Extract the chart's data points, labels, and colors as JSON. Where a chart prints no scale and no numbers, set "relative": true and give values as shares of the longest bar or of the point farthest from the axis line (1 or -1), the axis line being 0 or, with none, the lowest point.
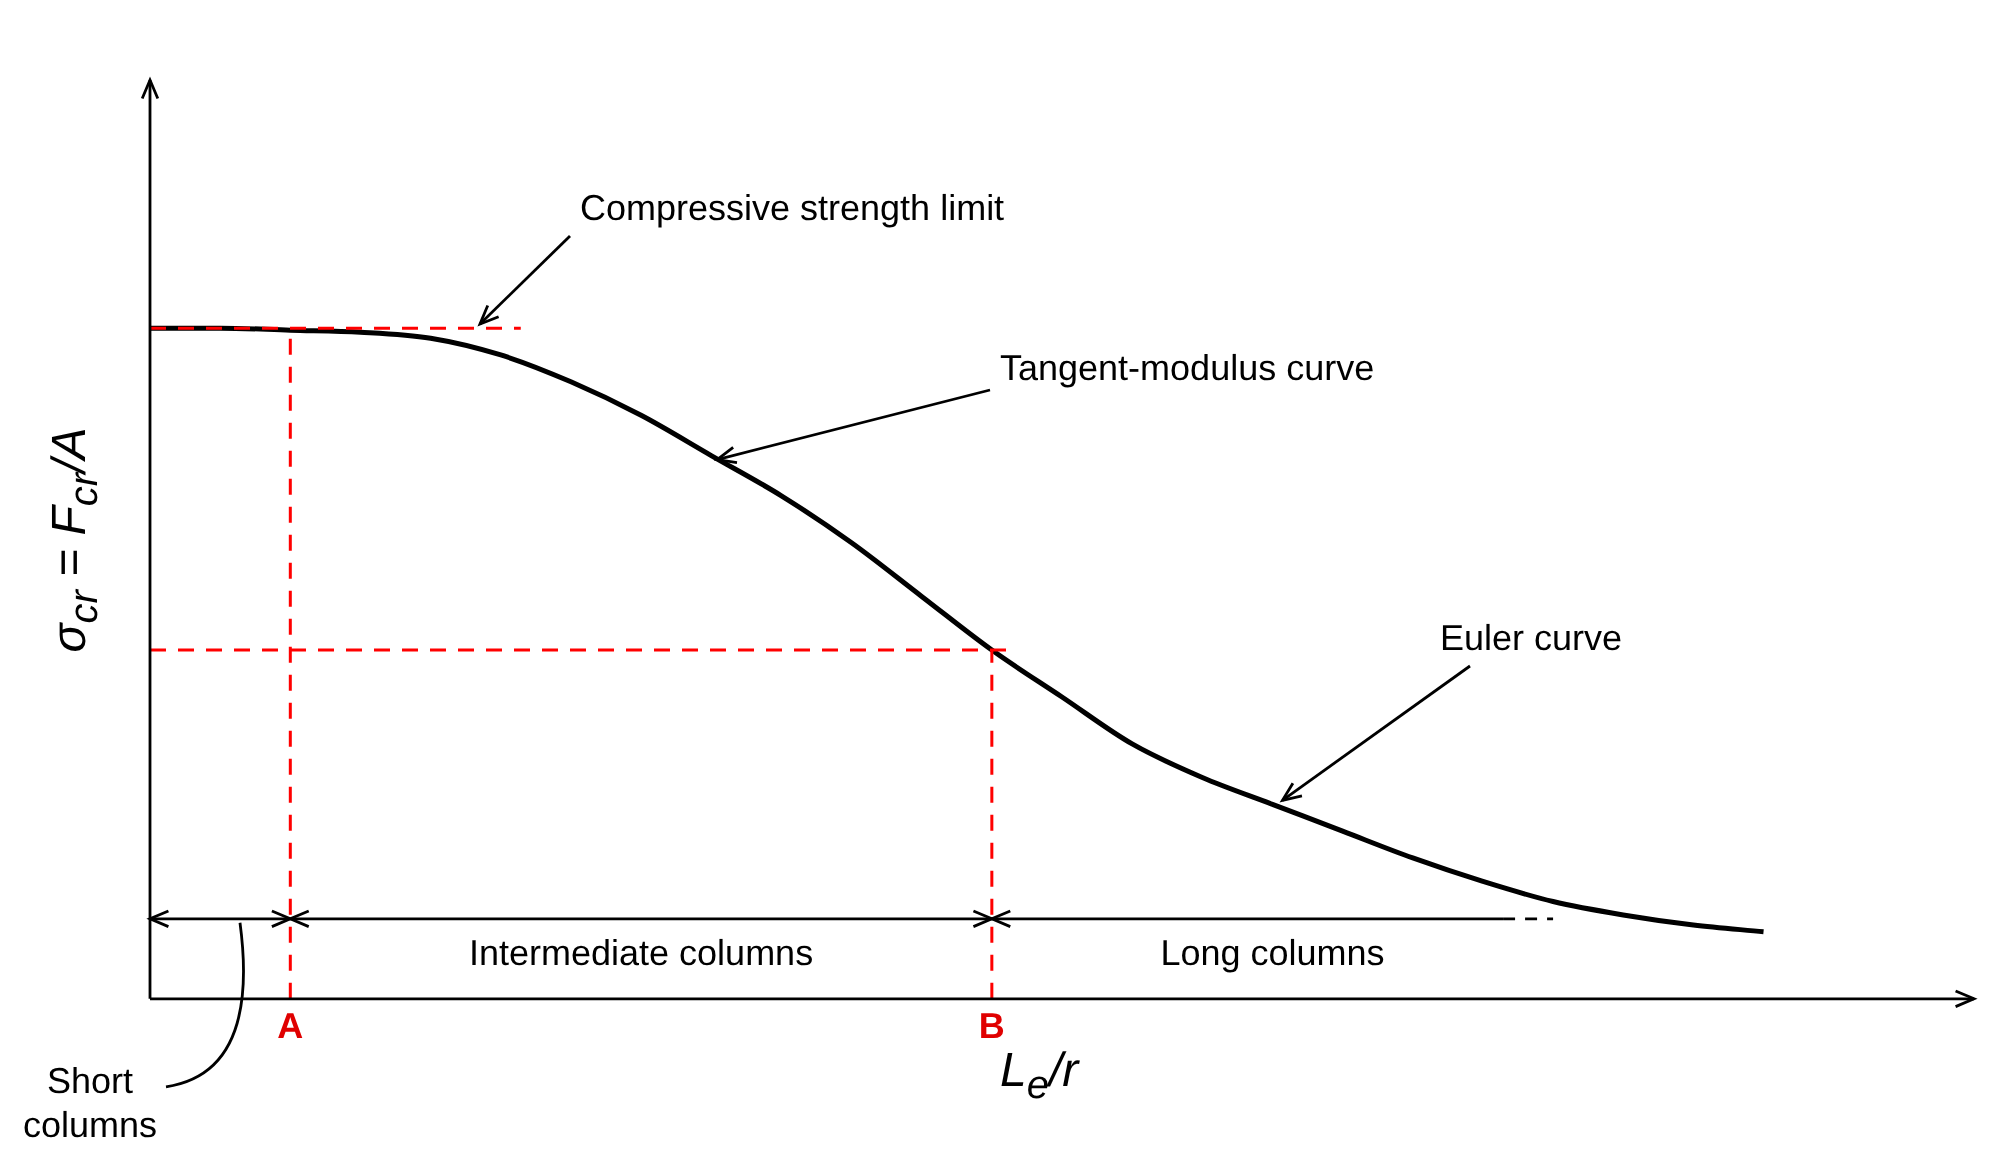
{
  "chart_data": {
    "type": "line",
    "relative": true,
    "xlabel": "L$_{e}$/r",
    "ylabel": "σ$_{cr}$ = F$_{cr}$/A",
    "categories": [
      null,
      null,
      "A",
      null,
      null,
      null,
      null,
      null,
      null,
      null,
      null,
      null,
      "B",
      null,
      null,
      null,
      null,
      null,
      null,
      null,
      null,
      null,
      null,
      null,
      null,
      null,
      null
    ],
    "series": [
      {
        "color": "#000000",
        "values": [
          1.0,
          1.0,
          0.997,
          0.994,
          0.985,
          0.96,
          0.92,
          0.87,
          0.81,
          0.75,
          0.68,
          0.6,
          0.52,
          0.45,
          0.38,
          0.33,
          0.29,
          0.25,
          0.21,
          0.175,
          0.145,
          0.125,
          0.11,
          0.1,
          null,
          null,
          null
        ]
      }
    ],
    "ref_lines": [
      {
        "axis": "y",
        "value": 1,
        "color": "#ff0000",
        "line_style": "dashed"
      },
      {
        "axis": "y",
        "value": 0.52,
        "color": "#ff0000",
        "line_style": "dashed"
      },
      {
        "axis": "x",
        "value": "A",
        "color": "#ff0000",
        "line_style": "dashed"
      },
      {
        "axis": "x",
        "value": "B",
        "color": "#ff0000",
        "line_style": "dashed"
      }
    ],
    "annotations": [
      "Compressive strength limit",
      "Tangent-modulus curve",
      "Euler curve",
      "Intermediate columns",
      "Long columns",
      "Short columns"
    ],
    "marker": "none",
    "line_style": "solid",
    "legend": false,
    "grid": false,
    "tick_labels": "x"
  }
}
